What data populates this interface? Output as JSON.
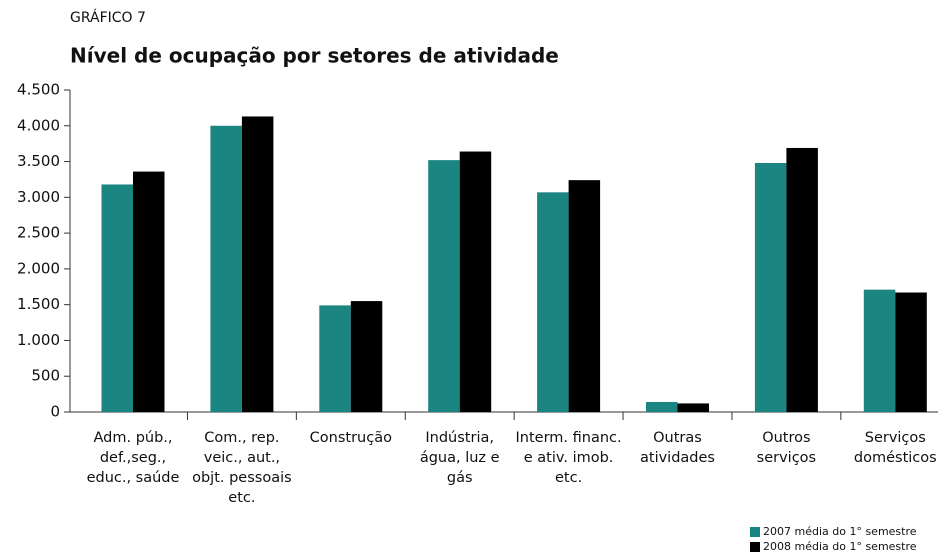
{
  "chart_data": {
    "type": "bar",
    "supertitle": "GRÁFICO 7",
    "title": "Nível de ocupação por setores de atividade",
    "categories": [
      "Adm. púb., def.,seg., educ., saúde",
      "Com., rep. veic., aut., objt. pessoais etc.",
      "Construção",
      "Indústria, água, luz e gás",
      "Interm. financ. e ativ. imob. etc.",
      "Outras atividades",
      "Outros serviços",
      "Serviços domésticos"
    ],
    "series": [
      {
        "name": "2007 média do 1° semestre",
        "color": "#1b8582",
        "values": [
          3180,
          4000,
          1490,
          3520,
          3070,
          140,
          3480,
          1710
        ]
      },
      {
        "name": "2008 média do 1° semestre",
        "color": "#000000",
        "values": [
          3360,
          4130,
          1550,
          3640,
          3240,
          120,
          3690,
          1670
        ]
      }
    ],
    "ylim": [
      0,
      4500
    ],
    "yticks": [
      0,
      500,
      {
        "value": 1000,
        "label": "1.000"
      },
      {
        "value": 1500,
        "label": "1.500"
      },
      {
        "value": 2000,
        "label": "2.000"
      },
      {
        "value": 2500,
        "label": "2.500"
      },
      {
        "value": 3000,
        "label": "3.000"
      },
      {
        "value": 3500,
        "label": "3.500"
      },
      {
        "value": 4000,
        "label": "4.000"
      },
      {
        "value": 4500,
        "label": "4.500"
      }
    ],
    "legend": "bottom-right"
  }
}
